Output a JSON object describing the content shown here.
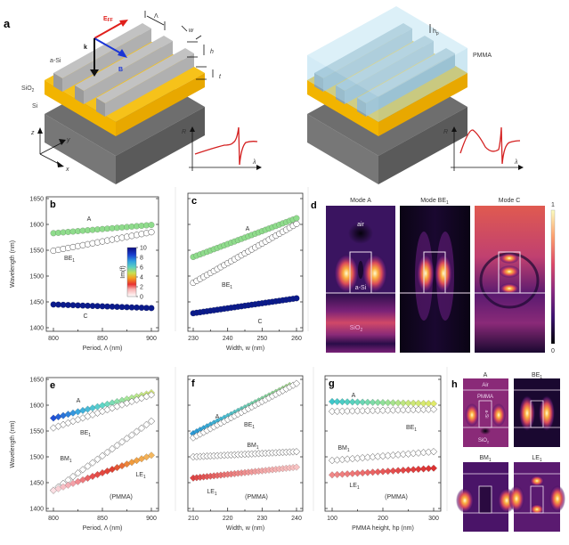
{
  "figure": {
    "panel_labels": [
      "a",
      "b",
      "c",
      "d",
      "e",
      "f",
      "g",
      "h"
    ],
    "panel_a": {
      "left": {
        "labels": {
          "a_si": "a-Si",
          "sio2": "SiO",
          "sio2_sub": "2",
          "si": "Si",
          "e_field": "E",
          "e_field_sub": "FF",
          "k": "k",
          "b": "B",
          "period": "Λ",
          "width": "w",
          "height": "h",
          "thickness": "t"
        },
        "axes": {
          "z": "z",
          "y": "y",
          "x": "x"
        },
        "inset": {
          "ylabel": "R",
          "xlabel": "λ"
        }
      },
      "right": {
        "labels": {
          "pmma": "PMMA",
          "hp": "h",
          "hp_sub": "p"
        },
        "inset": {
          "ylabel": "R",
          "xlabel": "λ"
        }
      }
    },
    "panel_d": {
      "titles": [
        "Mode A",
        "Mode BE",
        "Mode C"
      ],
      "title_sub": "1",
      "region_labels": {
        "air": "air",
        "asi": "a-Si",
        "sio2": "SiO",
        "sio2_sub": "2"
      },
      "colorbar": {
        "min": "0",
        "max": "1"
      }
    },
    "panel_h": {
      "titles": [
        "A",
        "BE",
        "BM",
        "LE"
      ],
      "title_sub": "1",
      "region_labels": {
        "air": "Air",
        "pmma": "PMMA",
        "asi": "a-Si",
        "sio2": "SiO",
        "sio2_sub": "2"
      }
    },
    "colors": {
      "substrate_si": "#6b6b6b",
      "sio2": "#f5b800",
      "asi": "#a9a9a9",
      "pmma": "#bfe3f2",
      "e_field": "#e0201c",
      "b_field": "#1a35d6",
      "k_vector": "#111111",
      "inset_curve": "#d42020"
    }
  },
  "chart_data": [
    {
      "panel": "b",
      "type": "scatter",
      "xlabel": "Period, Λ (nm)",
      "ylabel": "Wavelength (nm)",
      "xlim": [
        800,
        900
      ],
      "ylim": [
        1400,
        1650
      ],
      "xticks": [
        800,
        850,
        900
      ],
      "yticks": [
        1400,
        1450,
        1500,
        1550,
        1600,
        1650
      ],
      "marker": "circle",
      "colorbar": {
        "label": "Im(f)",
        "ticks": [
          0,
          2,
          4,
          6,
          8,
          10
        ]
      },
      "series": [
        {
          "name": "A",
          "x_start": 800,
          "x_end": 900,
          "count": 21,
          "y_start": 1583,
          "y_end": 1599,
          "color": "#8fdc8c",
          "fill": true
        },
        {
          "name": "BE1",
          "x_start": 800,
          "x_end": 900,
          "count": 21,
          "y_start": 1549,
          "y_end": 1585,
          "color": "#ffffff",
          "fill": false
        },
        {
          "name": "C",
          "x_start": 800,
          "x_end": 900,
          "count": 21,
          "y_start": 1445,
          "y_end": 1438,
          "color": "#0a1a8c",
          "fill": true
        }
      ],
      "annotations": [
        "A",
        "BE1",
        "C"
      ]
    },
    {
      "panel": "c",
      "type": "scatter",
      "xlabel": "Width, w (nm)",
      "ylabel": "",
      "xlim": [
        230,
        260
      ],
      "ylim": [
        1400,
        1650
      ],
      "xticks": [
        230,
        240,
        250,
        260
      ],
      "yticks": [
        1400,
        1450,
        1500,
        1550,
        1600,
        1650
      ],
      "marker": "circle",
      "series": [
        {
          "name": "A",
          "x_start": 230,
          "x_end": 260,
          "count": 31,
          "y_start": 1537,
          "y_end": 1612,
          "color": "#8fdc8c",
          "fill": true
        },
        {
          "name": "BE1",
          "x_start": 230,
          "x_end": 260,
          "count": 31,
          "y_start": 1487,
          "y_end": 1601,
          "color": "#ffffff",
          "fill": false
        },
        {
          "name": "C",
          "x_start": 230,
          "x_end": 260,
          "count": 31,
          "y_start": 1428,
          "y_end": 1457,
          "color": "#0a1a8c",
          "fill": true
        }
      ],
      "annotations": [
        "A",
        "BE1",
        "C"
      ]
    },
    {
      "panel": "e",
      "type": "scatter",
      "xlabel": "Period, Λ (nm)",
      "ylabel": "Wavelength (nm)",
      "xlim": [
        800,
        900
      ],
      "ylim": [
        1400,
        1650
      ],
      "xticks": [
        800,
        850,
        900
      ],
      "yticks": [
        1400,
        1450,
        1500,
        1550,
        1600,
        1650
      ],
      "marker": "diamond",
      "series": [
        {
          "name": "A",
          "x_start": 800,
          "x_end": 900,
          "count": 21,
          "y_start": 1575,
          "y_end": 1624,
          "gradient": [
            "#1f4fd6",
            "#3aa8e0",
            "#5fd6c8",
            "#a8e89a",
            "#d8ec7a"
          ],
          "fill": true
        },
        {
          "name": "BE1",
          "x_start": 800,
          "x_end": 900,
          "count": 21,
          "y_start": 1556,
          "y_end": 1620,
          "color": "#ffffff",
          "fill": false
        },
        {
          "name": "BM1",
          "x_start": 800,
          "x_end": 900,
          "count": 21,
          "y_start": 1435,
          "y_end": 1569,
          "color": "#ffffff",
          "fill": false
        },
        {
          "name": "LE1",
          "x_start": 800,
          "x_end": 900,
          "count": 21,
          "y_start": 1435,
          "y_end": 1503,
          "gradient": [
            "#fbe0e4",
            "#f4a0a8",
            "#e85050",
            "#e04030",
            "#f09a3c",
            "#f4b860"
          ],
          "fill": true
        }
      ],
      "annotations": [
        "A",
        "BE1",
        "BM1",
        "LE1",
        "(PMMA)"
      ]
    },
    {
      "panel": "f",
      "type": "scatter",
      "xlabel": "Width, w (nm)",
      "ylabel": "",
      "xlim": [
        210,
        240
      ],
      "ylim": [
        1400,
        1650
      ],
      "xticks": [
        210,
        220,
        230,
        240
      ],
      "yticks": [
        1400,
        1450,
        1500,
        1550,
        1600,
        1650
      ],
      "marker": "diamond",
      "series": [
        {
          "name": "A",
          "x_start": 210,
          "x_end": 238,
          "count": 29,
          "y_start": 1545,
          "y_end": 1638,
          "gradient": [
            "#2a9ad8",
            "#49c0d8",
            "#7ed8a8",
            "#a6e08a"
          ],
          "fill": true
        },
        {
          "name": "BE1",
          "x_start": 210,
          "x_end": 240,
          "count": 31,
          "y_start": 1537,
          "y_end": 1642,
          "color": "#ffffff",
          "fill": false
        },
        {
          "name": "BM1",
          "x_start": 210,
          "x_end": 240,
          "count": 31,
          "y_start": 1500,
          "y_end": 1510,
          "color": "#ffffff",
          "fill": false
        },
        {
          "name": "LE1",
          "x_start": 210,
          "x_end": 240,
          "count": 31,
          "y_start": 1459,
          "y_end": 1480,
          "gradient": [
            "#e04444",
            "#ec7878",
            "#f4a8a8",
            "#f8c4c4"
          ],
          "fill": true
        }
      ],
      "annotations": [
        "A",
        "BE1",
        "BM1",
        "LE1",
        "(PMMA)"
      ]
    },
    {
      "panel": "g",
      "type": "scatter",
      "xlabel": "PMMA height, hp (nm)",
      "ylabel": "",
      "xlim": [
        100,
        300
      ],
      "ylim": [
        1400,
        1650
      ],
      "xticks": [
        100,
        200,
        300
      ],
      "yticks": [
        1400,
        1450,
        1500,
        1550,
        1600,
        1650
      ],
      "marker": "diamond",
      "series": [
        {
          "name": "A",
          "x_start": 100,
          "x_end": 300,
          "count": 21,
          "y_start": 1607,
          "y_end": 1603,
          "gradient": [
            "#3ec8cc",
            "#60d4bc",
            "#90e09a",
            "#c8e87a",
            "#e0ea6a"
          ],
          "fill": true
        },
        {
          "name": "BE1",
          "x_start": 100,
          "x_end": 300,
          "count": 21,
          "y_start": 1588,
          "y_end": 1592,
          "color": "#ffffff",
          "fill": false
        },
        {
          "name": "BM1",
          "x_start": 100,
          "x_end": 300,
          "count": 21,
          "y_start": 1493,
          "y_end": 1510,
          "color": "#ffffff",
          "fill": false
        },
        {
          "name": "LE1",
          "x_start": 100,
          "x_end": 300,
          "count": 21,
          "y_start": 1465,
          "y_end": 1478,
          "gradient": [
            "#f08888",
            "#ec6a6a",
            "#e44848",
            "#dc3030"
          ],
          "fill": true
        }
      ],
      "annotations": [
        "A",
        "BE1",
        "BM1",
        "LE1",
        "(PMMA)"
      ]
    }
  ]
}
